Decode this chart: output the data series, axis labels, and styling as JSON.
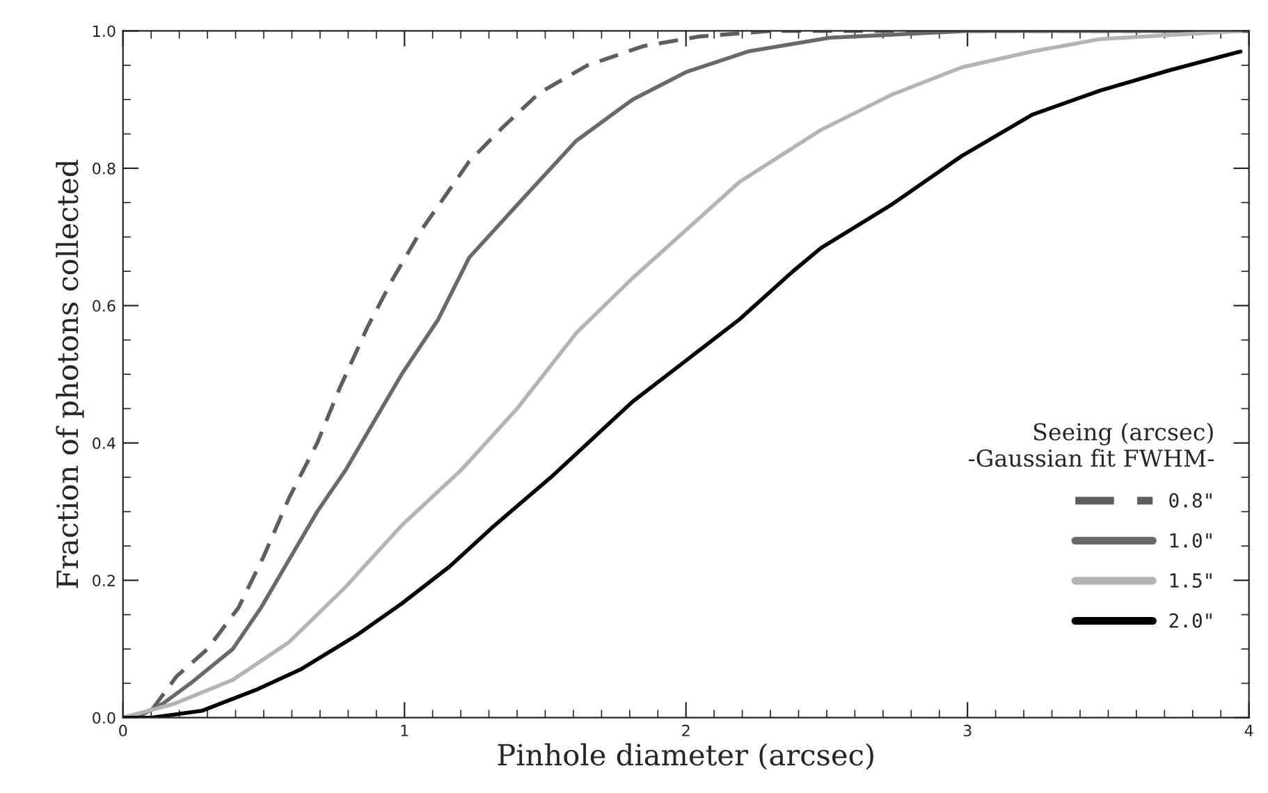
{
  "chart_data": {
    "type": "line",
    "xlabel": "Pinhole diameter (arcsec)",
    "ylabel": "Fraction of photons collected",
    "legend_title": "Seeing (arcsec)\n-Gaussian fit FWHM-",
    "legend": "bottom right",
    "grid": false,
    "xlim": [
      0,
      4
    ],
    "ylim": [
      0,
      1
    ],
    "xticks": [
      0,
      1,
      2,
      3,
      4
    ],
    "yticks": [
      {
        "value": 0,
        "label": "0.0"
      },
      {
        "value": 0.2,
        "label": "0.2"
      },
      {
        "value": 0.4,
        "label": "0.4"
      },
      {
        "value": 0.6,
        "label": "0.6"
      },
      {
        "value": 0.8,
        "label": "0.8"
      },
      {
        "value": 1,
        "label": "1.0"
      }
    ],
    "series": [
      {
        "name": "0.8\"",
        "color": "#5e5e5e",
        "line_style": "dashed",
        "x": [
          0,
          0.1,
          0.19,
          0.3,
          0.41,
          0.5,
          0.59,
          0.69,
          0.77,
          0.87,
          0.96,
          1.06,
          1.23,
          1.35,
          1.48,
          1.65,
          1.85,
          2.05,
          2.3,
          4.0
        ],
        "values": [
          0,
          0.01,
          0.06,
          0.1,
          0.16,
          0.235,
          0.32,
          0.4,
          0.48,
          0.57,
          0.64,
          0.71,
          0.81,
          0.86,
          0.91,
          0.95,
          0.978,
          0.992,
          1.0,
          1.0
        ]
      },
      {
        "name": "1.0\"",
        "color": "#696969",
        "line_style": "solid",
        "x": [
          0,
          0.07,
          0.14,
          0.24,
          0.39,
          0.49,
          0.59,
          0.69,
          0.79,
          0.89,
          0.99,
          1.12,
          1.23,
          1.43,
          1.61,
          1.81,
          2.0,
          2.22,
          2.51,
          3.0,
          4.0
        ],
        "values": [
          0,
          0.005,
          0.02,
          0.05,
          0.1,
          0.16,
          0.23,
          0.3,
          0.36,
          0.43,
          0.5,
          0.58,
          0.67,
          0.76,
          0.84,
          0.9,
          0.94,
          0.97,
          0.99,
          1.0,
          1.0
        ]
      },
      {
        "name": "1.5\"",
        "color": "#b4b4b4",
        "line_style": "solid",
        "x": [
          0,
          0.18,
          0.39,
          0.59,
          0.79,
          0.99,
          1.2,
          1.4,
          1.61,
          1.81,
          2.0,
          2.19,
          2.38,
          2.48,
          2.73,
          2.98,
          3.23,
          3.47,
          3.97
        ],
        "values": [
          0,
          0.02,
          0.055,
          0.11,
          0.19,
          0.28,
          0.36,
          0.45,
          0.56,
          0.64,
          0.71,
          0.78,
          0.83,
          0.856,
          0.907,
          0.947,
          0.97,
          0.988,
          1.0
        ]
      },
      {
        "name": "2.0\"",
        "color": "#000000",
        "line_style": "solid",
        "x": [
          0,
          0.1,
          0.28,
          0.47,
          0.63,
          0.83,
          0.99,
          1.16,
          1.32,
          1.52,
          1.81,
          2.0,
          2.19,
          2.38,
          2.48,
          2.73,
          2.98,
          3.23,
          3.47,
          3.72,
          3.97
        ],
        "values": [
          0,
          0,
          0.01,
          0.04,
          0.07,
          0.12,
          0.166,
          0.22,
          0.28,
          0.35,
          0.46,
          0.52,
          0.58,
          0.65,
          0.684,
          0.747,
          0.818,
          0.878,
          0.913,
          0.943,
          0.97
        ]
      }
    ]
  }
}
